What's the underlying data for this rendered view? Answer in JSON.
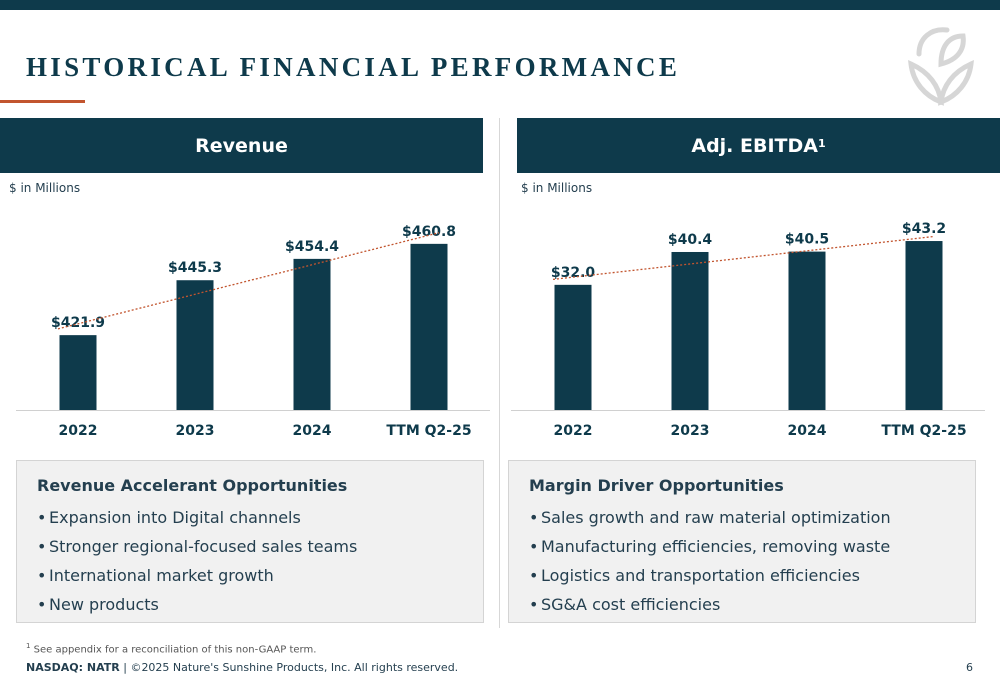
{
  "page": {
    "title": "HISTORICAL FINANCIAL PERFORMANCE",
    "number": "6",
    "colors": {
      "navy": "#0e3a4b",
      "accent": "#c2552f",
      "box_bg": "#f1f1f1",
      "trend": "#c2552f"
    }
  },
  "logo": {
    "icon": "leaf-sun-logo-icon"
  },
  "revenue": {
    "header": "Revenue",
    "units": "$ in Millions",
    "opportunities": {
      "title": "Revenue Accelerant Opportunities",
      "items": [
        "Expansion into Digital channels",
        "Stronger regional-focused sales teams",
        "International market growth",
        "New products"
      ]
    }
  },
  "ebitda": {
    "header": "Adj. EBITDA",
    "header_sup": "1",
    "units": "$ in Millions",
    "opportunities": {
      "title": "Margin Driver Opportunities",
      "items": [
        "Sales growth and raw material optimization",
        "Manufacturing efficiencies, removing waste",
        "Logistics and transportation efficiencies",
        "SG&A cost efficiencies"
      ]
    }
  },
  "bullet": "•",
  "footnote": {
    "sup": "1",
    "text": "See appendix for a reconciliation of this non-GAAP term."
  },
  "footer": {
    "ticker": "NASDAQ: NATR",
    "separator": "|",
    "copyright": "©2025 Nature's Sunshine Products, Inc. All rights reserved."
  },
  "chart_data": [
    {
      "id": "rev",
      "type": "bar",
      "categories": [
        "2022",
        "2023",
        "2024",
        "TTM Q2-25"
      ],
      "values": [
        421.9,
        445.3,
        454.4,
        460.8
      ],
      "data_labels": [
        "$421.9",
        "$445.3",
        "$454.4",
        "$460.8"
      ],
      "ylim": [
        390,
        465
      ],
      "trendline": true,
      "grid": false,
      "bar_color": "#0e3a4b"
    },
    {
      "id": "ebitda",
      "type": "bar",
      "categories": [
        "2022",
        "2023",
        "2024",
        "TTM Q2-25"
      ],
      "values": [
        32.0,
        40.4,
        40.5,
        43.2
      ],
      "data_labels": [
        "$32.0",
        "$40.4",
        "$40.5",
        "$43.2"
      ],
      "ylim": [
        0,
        45
      ],
      "trendline": true,
      "grid": false,
      "bar_color": "#0e3a4b"
    }
  ]
}
